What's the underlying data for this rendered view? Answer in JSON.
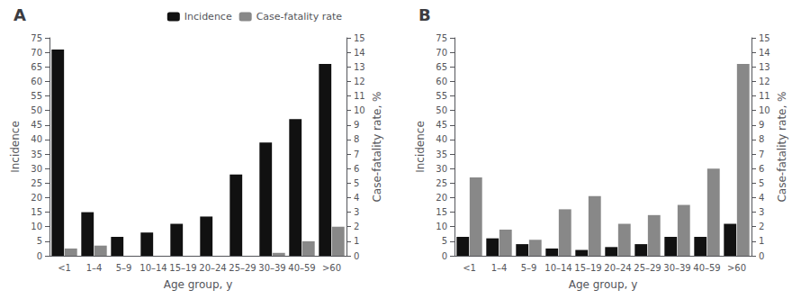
{
  "chart_data": [
    {
      "type": "bar",
      "title": "A",
      "categories": [
        "<1",
        "1–4",
        "5–9",
        "10–14",
        "15–19",
        "20–24",
        "25–29",
        "30–39",
        "40–59",
        ">60"
      ],
      "xlabel": "Age group, y",
      "ylabel": "Incidence",
      "y2label": "Case-fatality rate, %",
      "series": [
        {
          "name": "Incidence",
          "color": "#111111",
          "values": [
            71,
            15,
            6.5,
            8,
            11,
            13.5,
            28,
            39,
            47,
            66
          ]
        },
        {
          "name": "Case-fatality rate",
          "color": "#888888",
          "axis": "y2",
          "values": [
            0.5,
            0.7,
            0,
            0,
            0,
            0,
            0,
            0.2,
            1.0,
            2.0
          ]
        }
      ],
      "ylim": [
        0,
        75
      ],
      "yticks": [
        0,
        5,
        10,
        15,
        20,
        25,
        30,
        35,
        40,
        45,
        50,
        55,
        60,
        65,
        70,
        75
      ],
      "y2lim": [
        0,
        15
      ],
      "y2ticks": [
        0,
        1,
        2,
        3,
        4,
        5,
        6,
        7,
        8,
        9,
        10,
        11,
        12,
        13,
        14,
        15
      ],
      "grid": false,
      "legend": "upper right"
    },
    {
      "type": "bar",
      "title": "B",
      "categories": [
        "<1",
        "1–4",
        "5–9",
        "10–14",
        "15–19",
        "20–24",
        "25–29",
        "30–39",
        "40–59",
        ">60"
      ],
      "xlabel": "Age group, y",
      "ylabel": "Incidence",
      "y2label": "Case-fatality rate, %",
      "series": [
        {
          "name": "Incidence",
          "color": "#111111",
          "values": [
            6.5,
            6,
            4,
            2.5,
            2,
            3,
            4,
            6.5,
            6.5,
            11
          ]
        },
        {
          "name": "Case-fatality rate",
          "color": "#888888",
          "axis": "y2",
          "values": [
            5.4,
            1.8,
            1.1,
            3.2,
            4.1,
            2.2,
            2.8,
            3.5,
            6.0,
            13.2
          ]
        }
      ],
      "ylim": [
        0,
        75
      ],
      "yticks": [
        0,
        5,
        10,
        15,
        20,
        25,
        30,
        35,
        40,
        45,
        50,
        55,
        60,
        65,
        70,
        75
      ],
      "y2lim": [
        0,
        15
      ],
      "y2ticks": [
        0,
        1,
        2,
        3,
        4,
        5,
        6,
        7,
        8,
        9,
        10,
        11,
        12,
        13,
        14,
        15
      ],
      "grid": false,
      "legend": false
    }
  ]
}
